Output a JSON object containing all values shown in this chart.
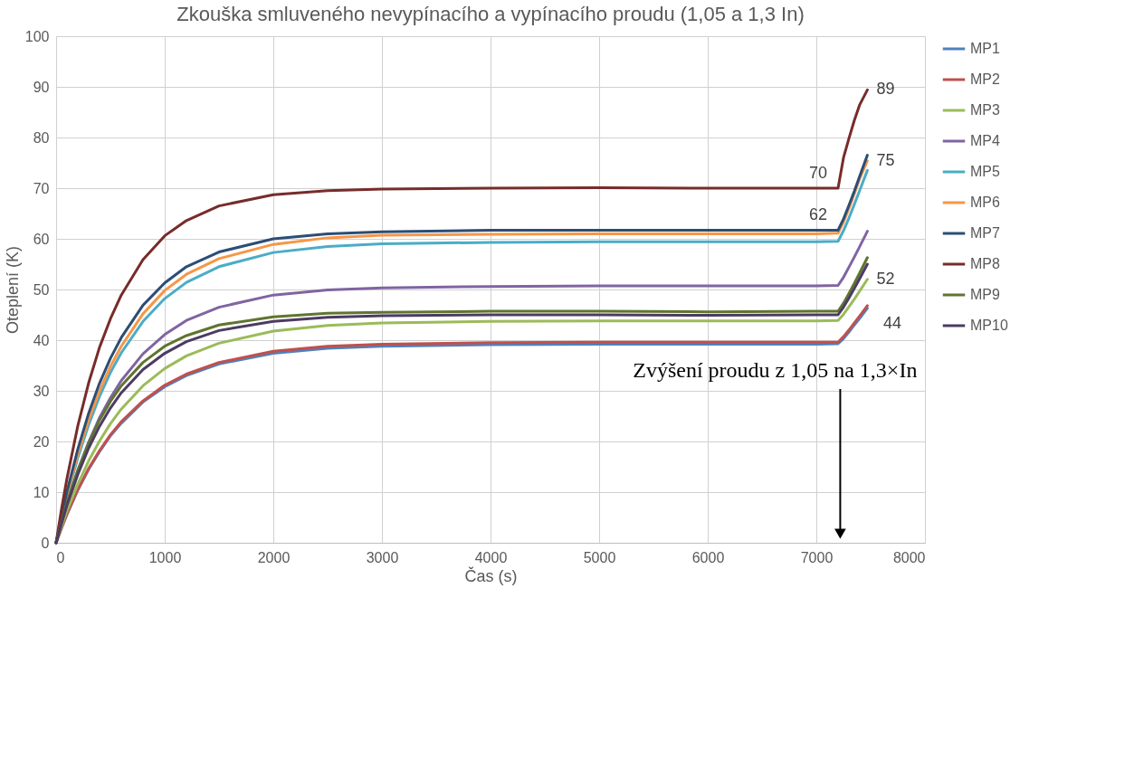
{
  "chart_data": {
    "type": "line",
    "title": "Zkouška smluveného nevypínacího a vypínacího proudu (1,05 a 1,3 In)",
    "xlabel": "Čas (s)",
    "ylabel": "Oteplení (K)",
    "x": [
      0,
      50,
      100,
      200,
      300,
      400,
      500,
      600,
      800,
      1000,
      1200,
      1500,
      2000,
      2500,
      3000,
      4000,
      5000,
      6000,
      7000,
      7200,
      7250,
      7300,
      7350,
      7400,
      7470
    ],
    "series": [
      {
        "name": "MP1",
        "color": "#4f81bd",
        "values": [
          0,
          2.9,
          5.6,
          10.4,
          14.5,
          18.0,
          21.1,
          23.6,
          27.8,
          30.8,
          33.0,
          35.3,
          37.4,
          38.4,
          38.8,
          39.1,
          39.2,
          39.2,
          39.2,
          39.3,
          40.3,
          41.6,
          43.0,
          44.3,
          46.3
        ],
        "value_labels": [
          null,
          null,
          null,
          null,
          null,
          null,
          null,
          null,
          null,
          null,
          null,
          null,
          null,
          null,
          null,
          null,
          null,
          null,
          null,
          null,
          null,
          null,
          null,
          "44",
          null
        ]
      },
      {
        "name": "MP2",
        "color": "#c0504d",
        "values": [
          0,
          2.9,
          5.7,
          10.5,
          14.7,
          18.2,
          21.3,
          23.9,
          28.0,
          31.1,
          33.3,
          35.6,
          37.8,
          38.8,
          39.2,
          39.5,
          39.6,
          39.6,
          39.6,
          39.6,
          40.7,
          42.0,
          43.4,
          44.8,
          46.8
        ]
      },
      {
        "name": "MP3",
        "color": "#9bbb59",
        "values": [
          0,
          3.2,
          6.3,
          11.6,
          16.2,
          20.1,
          23.5,
          26.4,
          31.0,
          34.4,
          36.9,
          39.4,
          41.8,
          42.9,
          43.4,
          43.7,
          43.8,
          43.8,
          43.8,
          43.9,
          45.1,
          46.6,
          48.1,
          49.7,
          52.0
        ],
        "value_labels": [
          null,
          null,
          null,
          null,
          null,
          null,
          null,
          null,
          null,
          null,
          null,
          null,
          null,
          null,
          null,
          null,
          null,
          null,
          null,
          null,
          null,
          null,
          null,
          null,
          "52"
        ]
      },
      {
        "name": "MP4",
        "color": "#8064a2",
        "values": [
          0,
          4.1,
          7.8,
          14.3,
          19.9,
          24.7,
          28.6,
          32.0,
          37.3,
          41.1,
          43.9,
          46.5,
          48.9,
          49.9,
          50.3,
          50.6,
          50.7,
          50.7,
          50.7,
          50.8,
          52.4,
          54.4,
          56.4,
          58.5,
          61.5
        ]
      },
      {
        "name": "MP5",
        "color": "#4bacc6",
        "values": [
          0,
          4.8,
          9.1,
          16.8,
          23.3,
          28.9,
          33.6,
          37.5,
          43.7,
          48.2,
          51.4,
          54.5,
          57.3,
          58.5,
          59.0,
          59.3,
          59.4,
          59.4,
          59.4,
          59.5,
          61.6,
          64.1,
          66.8,
          69.6,
          73.5
        ]
      },
      {
        "name": "MP6",
        "color": "#f79646",
        "values": [
          0,
          5.0,
          9.5,
          17.5,
          24.3,
          30.0,
          34.8,
          38.8,
          45.2,
          49.8,
          53.0,
          56.1,
          58.9,
          60.2,
          60.7,
          60.9,
          61.0,
          61.0,
          61.0,
          61.1,
          63.3,
          66.0,
          68.9,
          71.9,
          75.4
        ],
        "value_labels": [
          null,
          null,
          null,
          null,
          null,
          null,
          null,
          null,
          null,
          null,
          null,
          null,
          null,
          null,
          null,
          null,
          null,
          null,
          null,
          null,
          null,
          null,
          null,
          null,
          "75"
        ]
      },
      {
        "name": "MP7",
        "color": "#2c4d75",
        "values": [
          0,
          5.2,
          10.1,
          18.5,
          25.6,
          31.5,
          36.4,
          40.5,
          46.9,
          51.3,
          54.5,
          57.4,
          60.0,
          61.0,
          61.4,
          61.7,
          61.7,
          61.7,
          61.7,
          61.7,
          63.9,
          66.6,
          69.4,
          72.4,
          76.5
        ],
        "value_labels": [
          null,
          null,
          null,
          null,
          null,
          null,
          null,
          null,
          null,
          null,
          null,
          null,
          null,
          null,
          null,
          null,
          null,
          null,
          null,
          "62",
          null,
          null,
          null,
          null,
          null
        ]
      },
      {
        "name": "MP8",
        "color": "#772c2a",
        "values": [
          0,
          6.7,
          12.7,
          23.1,
          31.6,
          38.6,
          44.2,
          48.9,
          55.9,
          60.6,
          63.6,
          66.5,
          68.7,
          69.5,
          69.8,
          70.0,
          70.1,
          70.0,
          70.0,
          70.0,
          76.0,
          79.8,
          83.4,
          86.5,
          89.4
        ],
        "value_labels": [
          null,
          null,
          null,
          null,
          null,
          null,
          null,
          null,
          null,
          null,
          null,
          null,
          null,
          null,
          null,
          null,
          null,
          null,
          null,
          "70",
          null,
          null,
          null,
          null,
          "89"
        ]
      },
      {
        "name": "MP9",
        "color": "#5f7530",
        "values": [
          0,
          4.1,
          7.9,
          14.3,
          19.7,
          24.2,
          27.9,
          31.0,
          35.6,
          38.8,
          40.9,
          43.0,
          44.6,
          45.3,
          45.5,
          45.7,
          45.7,
          45.6,
          45.7,
          45.7,
          47.3,
          49.2,
          51.2,
          53.3,
          56.3
        ]
      },
      {
        "name": "MP10",
        "color": "#4d3b62",
        "values": [
          0,
          3.8,
          7.4,
          13.5,
          18.7,
          23.0,
          26.6,
          29.6,
          34.2,
          37.4,
          39.7,
          41.9,
          43.7,
          44.5,
          44.8,
          45.0,
          45.0,
          44.9,
          45.0,
          45.0,
          46.5,
          48.3,
          50.2,
          52.2,
          55.0
        ]
      }
    ],
    "xlim": [
      0,
      8000
    ],
    "xticks": [
      0,
      1000,
      2000,
      3000,
      4000,
      5000,
      6000,
      7000,
      8000
    ],
    "ylim": [
      0,
      100
    ],
    "yticks": [
      0,
      10,
      20,
      30,
      40,
      50,
      60,
      70,
      80,
      90,
      100
    ],
    "grid": true,
    "legend": "right",
    "annotations": [
      "Zvýšení proudu z 1,05 na 1,3×In"
    ]
  }
}
